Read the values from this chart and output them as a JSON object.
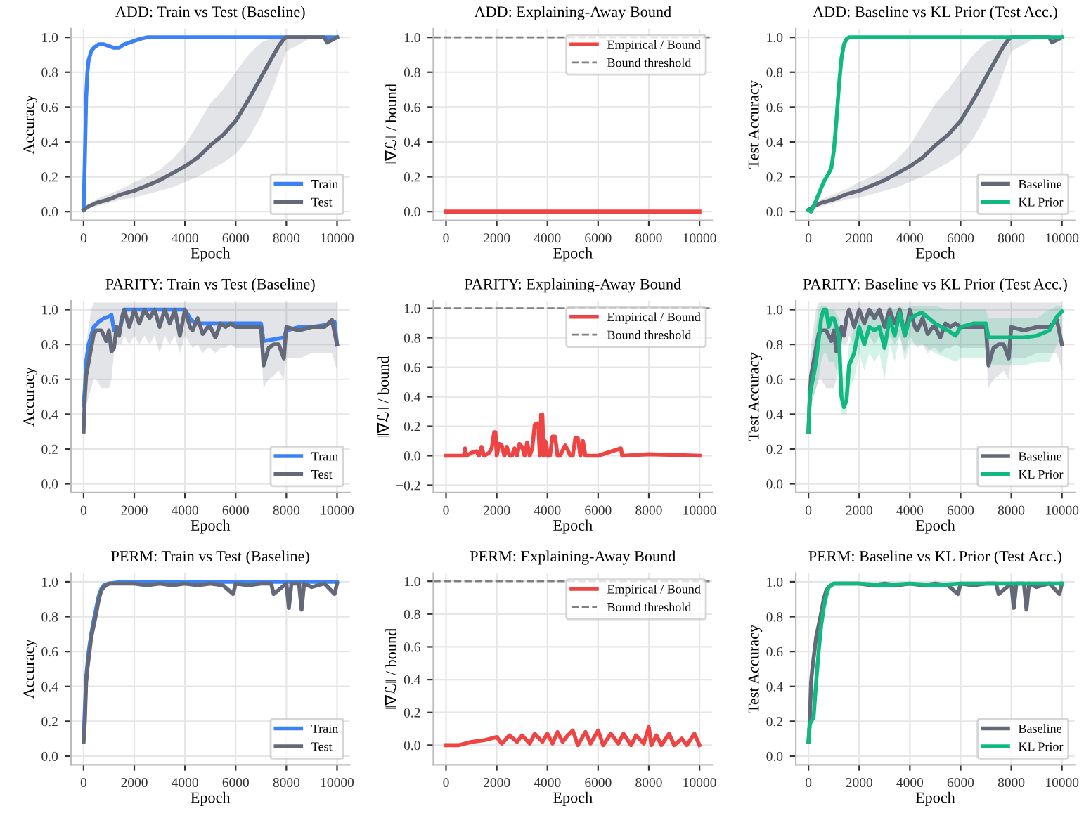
{
  "chart_data": [
    {
      "type": "line",
      "title": "ADD: Train vs Test (Baseline)",
      "xlabel": "Epoch",
      "ylabel": "Accuracy",
      "xlim": [
        -500,
        10500
      ],
      "xticks": [
        0,
        2000,
        4000,
        6000,
        8000,
        10000
      ],
      "ylim": [
        -0.05,
        1.05
      ],
      "yticks": [
        {
          "value": 0,
          "label": "0.0"
        },
        0.2,
        0.4,
        0.6,
        0.8,
        {
          "value": 1,
          "label": "1.0"
        }
      ],
      "grid": true,
      "legend": "bottom right",
      "series": [
        {
          "name": "Train",
          "color": "#3b82f6",
          "x": [
            0,
            50,
            100,
            150,
            200,
            300,
            400,
            500,
            600,
            700,
            800,
            1000,
            1200,
            1400,
            1600,
            1800,
            2000,
            2200,
            2500,
            3000,
            4000,
            5000,
            6000,
            7000,
            8000,
            9000,
            10000
          ],
          "values": [
            0.01,
            0.3,
            0.65,
            0.8,
            0.87,
            0.92,
            0.94,
            0.95,
            0.96,
            0.96,
            0.96,
            0.95,
            0.94,
            0.94,
            0.96,
            0.97,
            0.98,
            0.99,
            1,
            1,
            1,
            1,
            1,
            1,
            1,
            1,
            1
          ]
        },
        {
          "name": "Test",
          "color": "#64697a",
          "x": [
            0,
            200,
            500,
            1000,
            1500,
            2000,
            2500,
            3000,
            3500,
            4000,
            4500,
            5000,
            5500,
            6000,
            6500,
            7000,
            7500,
            7700,
            7900,
            8000,
            9000,
            9500,
            9600,
            10000
          ],
          "values": [
            0.01,
            0.03,
            0.05,
            0.07,
            0.1,
            0.12,
            0.15,
            0.18,
            0.22,
            0.26,
            0.31,
            0.38,
            0.44,
            0.52,
            0.64,
            0.77,
            0.9,
            0.95,
            0.99,
            1,
            1,
            1,
            0.97,
            1.0
          ],
          "lower": [
            0.01,
            0.02,
            0.03,
            0.05,
            0.07,
            0.08,
            0.1,
            0.12,
            0.14,
            0.17,
            0.2,
            0.24,
            0.28,
            0.33,
            0.42,
            0.55,
            0.72,
            0.8,
            0.88,
            0.92,
            1,
            1,
            0.97,
            1.0
          ],
          "upper": [
            0.01,
            0.04,
            0.07,
            0.1,
            0.13,
            0.17,
            0.2,
            0.24,
            0.3,
            0.38,
            0.5,
            0.62,
            0.7,
            0.8,
            0.9,
            0.97,
            1.0,
            1.0,
            1.0,
            1.0,
            1,
            1,
            1,
            1
          ]
        }
      ]
    },
    {
      "type": "line",
      "title": "ADD: Explaining-Away Bound",
      "xlabel": "Epoch",
      "ylabel": "‖∇ℒ‖ / bound",
      "xlim": [
        -500,
        10500
      ],
      "xticks": [
        0,
        2000,
        4000,
        6000,
        8000,
        10000
      ],
      "ylim": [
        -0.05,
        1.05
      ],
      "yticks": [
        {
          "value": 0,
          "label": "0.0"
        },
        0.2,
        0.4,
        0.6,
        0.8,
        {
          "value": 1,
          "label": "1.0"
        }
      ],
      "grid": true,
      "legend": "top right",
      "series": [
        {
          "name": "Empirical / Bound",
          "color": "#ef4444",
          "x": [
            0,
            2000,
            4000,
            6000,
            8000,
            10000
          ],
          "values": [
            0,
            0,
            0,
            0,
            0,
            0
          ]
        }
      ],
      "ref_lines": [
        {
          "axis": "y",
          "value": 1.0,
          "label": "Bound threshold",
          "color": "#808080",
          "line_style": "dashed"
        }
      ]
    },
    {
      "type": "line",
      "title": "ADD: Baseline vs KL Prior (Test Acc.)",
      "xlabel": "Epoch",
      "ylabel": "Test Accuracy",
      "xlim": [
        -500,
        10500
      ],
      "xticks": [
        0,
        2000,
        4000,
        6000,
        8000,
        10000
      ],
      "ylim": [
        -0.05,
        1.05
      ],
      "yticks": [
        {
          "value": 0,
          "label": "0.0"
        },
        0.2,
        0.4,
        0.6,
        0.8,
        {
          "value": 1,
          "label": "1.0"
        }
      ],
      "grid": true,
      "legend": "bottom right",
      "series": [
        {
          "name": "Baseline",
          "color": "#64697a",
          "x": [
            0,
            200,
            500,
            1000,
            1500,
            2000,
            2500,
            3000,
            3500,
            4000,
            4500,
            5000,
            5500,
            6000,
            6500,
            7000,
            7500,
            7700,
            7900,
            8000,
            9000,
            9500,
            9600,
            10000
          ],
          "values": [
            0.01,
            0.03,
            0.05,
            0.07,
            0.1,
            0.12,
            0.15,
            0.18,
            0.22,
            0.26,
            0.31,
            0.38,
            0.44,
            0.52,
            0.64,
            0.77,
            0.9,
            0.95,
            0.99,
            1,
            1,
            1,
            0.97,
            1.0
          ],
          "lower": [
            0.01,
            0.02,
            0.03,
            0.05,
            0.07,
            0.08,
            0.1,
            0.12,
            0.14,
            0.17,
            0.2,
            0.24,
            0.28,
            0.33,
            0.42,
            0.55,
            0.72,
            0.8,
            0.88,
            0.92,
            1,
            1,
            0.97,
            1.0
          ],
          "upper": [
            0.01,
            0.04,
            0.07,
            0.1,
            0.13,
            0.17,
            0.2,
            0.24,
            0.3,
            0.38,
            0.5,
            0.62,
            0.7,
            0.8,
            0.9,
            0.97,
            1.0,
            1.0,
            1.0,
            1.0,
            1,
            1,
            1,
            1
          ]
        },
        {
          "name": "KL Prior",
          "color": "#10b981",
          "x": [
            0,
            100,
            200,
            400,
            600,
            800,
            900,
            1000,
            1100,
            1200,
            1300,
            1400,
            1500,
            1600,
            1700,
            1800,
            2000,
            4000,
            6000,
            8000,
            10000
          ],
          "values": [
            0.01,
            0.0,
            0.03,
            0.1,
            0.17,
            0.22,
            0.25,
            0.35,
            0.52,
            0.72,
            0.88,
            0.96,
            0.99,
            1,
            1,
            1,
            1,
            1,
            1,
            1,
            1
          ]
        }
      ]
    },
    {
      "type": "line",
      "title": "PARITY: Train vs Test (Baseline)",
      "xlabel": "Epoch",
      "ylabel": "Accuracy",
      "xlim": [
        -500,
        10500
      ],
      "xticks": [
        0,
        2000,
        4000,
        6000,
        8000,
        10000
      ],
      "ylim": [
        -0.05,
        1.05
      ],
      "yticks": [
        {
          "value": 0,
          "label": "0.0"
        },
        0.2,
        0.4,
        0.6,
        0.8,
        {
          "value": 1,
          "label": "1.0"
        }
      ],
      "grid": true,
      "legend": "bottom right",
      "series": [
        {
          "name": "Train",
          "color": "#3b82f6",
          "x": [
            0,
            50,
            100,
            200,
            300,
            400,
            600,
            800,
            1000,
            1100,
            1200,
            1400,
            1600,
            1800,
            2000,
            3000,
            4000,
            4200,
            4400,
            5000,
            6000,
            7000,
            7100,
            7500,
            7900,
            8000,
            8500,
            9000,
            9500,
            9900,
            10000
          ],
          "values": [
            0.45,
            0.55,
            0.7,
            0.8,
            0.85,
            0.9,
            0.93,
            0.95,
            0.96,
            0.97,
            0.88,
            0.86,
            1.0,
            1.0,
            1.0,
            1.0,
            1.0,
            0.95,
            0.92,
            0.92,
            0.92,
            0.92,
            0.82,
            0.83,
            0.84,
            0.88,
            0.9,
            0.9,
            0.91,
            0.93,
            0.8
          ]
        },
        {
          "name": "Test",
          "color": "#64697a",
          "x": [
            0,
            50,
            100,
            200,
            300,
            400,
            500,
            700,
            900,
            1000,
            1100,
            1200,
            1300,
            1400,
            1500,
            1600,
            1800,
            2000,
            2200,
            2400,
            2600,
            2800,
            3000,
            3200,
            3400,
            3600,
            3800,
            4000,
            4200,
            4300,
            4500,
            4700,
            4900,
            5000,
            5200,
            5400,
            5600,
            5800,
            6000,
            6500,
            7000,
            7100,
            7300,
            7500,
            7700,
            7900,
            8000,
            8500,
            9000,
            9500,
            9800,
            10000
          ],
          "values": [
            0.3,
            0.5,
            0.62,
            0.7,
            0.78,
            0.86,
            0.88,
            0.88,
            0.82,
            0.88,
            0.76,
            0.78,
            0.9,
            0.85,
            0.95,
            1.0,
            0.9,
            1.0,
            0.92,
            1.0,
            0.95,
            1.0,
            0.9,
            1.0,
            0.92,
            1.0,
            0.85,
            1.0,
            0.9,
            0.88,
            0.95,
            0.86,
            0.9,
            0.9,
            0.84,
            0.92,
            0.9,
            0.92,
            0.9,
            0.9,
            0.9,
            0.68,
            0.78,
            0.8,
            0.8,
            0.72,
            0.9,
            0.88,
            0.9,
            0.9,
            0.94,
            0.8
          ],
          "lower": [
            0.3,
            0.4,
            0.45,
            0.5,
            0.55,
            0.6,
            0.6,
            0.55,
            0.55,
            0.55,
            0.6,
            0.75,
            0.8,
            0.8,
            0.8,
            0.85,
            0.8,
            0.85,
            0.8,
            0.85,
            0.8,
            0.85,
            0.75,
            0.85,
            0.8,
            0.85,
            0.75,
            0.85,
            0.8,
            0.78,
            0.8,
            0.75,
            0.78,
            0.78,
            0.75,
            0.78,
            0.78,
            0.8,
            0.78,
            0.78,
            0.78,
            0.55,
            0.6,
            0.62,
            0.65,
            0.6,
            0.72,
            0.72,
            0.75,
            0.75,
            0.75,
            0.65
          ],
          "upper": [
            0.5,
            0.7,
            0.8,
            0.9,
            1.0,
            1.04,
            1.04,
            1.04,
            1.04,
            1.04,
            1.04,
            1.04,
            1.04,
            1.04,
            1.04,
            1.04,
            1.04,
            1.04,
            1.04,
            1.04,
            1.04,
            1.04,
            1.04,
            1.04,
            1.04,
            1.04,
            1.04,
            1.04,
            1.04,
            1.04,
            1.04,
            1.04,
            1.04,
            1.04,
            1.04,
            1.04,
            1.04,
            1.04,
            1.04,
            1.04,
            1.04,
            1.04,
            1.04,
            1.04,
            1.04,
            1.04,
            1.04,
            1.04,
            1.04,
            1.04,
            1.04,
            1.04
          ]
        }
      ]
    },
    {
      "type": "line",
      "title": "PARITY: Explaining-Away Bound",
      "xlabel": "Epoch",
      "ylabel": "‖∇ℒ‖ / bound",
      "xlim": [
        -500,
        10500
      ],
      "xticks": [
        0,
        2000,
        4000,
        6000,
        8000,
        10000
      ],
      "ylim": [
        -0.25,
        1.05
      ],
      "yticks": [
        {
          "value": -0.2,
          "label": "−0.2"
        },
        {
          "value": 0,
          "label": "0.0"
        },
        0.2,
        0.4,
        0.6,
        0.8,
        {
          "value": 1,
          "label": "1.0"
        }
      ],
      "grid": true,
      "legend": "top right",
      "series": [
        {
          "name": "Empirical / Bound",
          "color": "#ef4444",
          "x": [
            0,
            500,
            700,
            750,
            800,
            1000,
            1200,
            1300,
            1400,
            1500,
            1700,
            1800,
            1900,
            1950,
            2000,
            2100,
            2200,
            2300,
            2400,
            2500,
            2600,
            2700,
            2800,
            2900,
            3000,
            3100,
            3200,
            3300,
            3400,
            3500,
            3600,
            3650,
            3700,
            3750,
            3800,
            3850,
            3900,
            3950,
            4000,
            4100,
            4200,
            4300,
            4400,
            4500,
            4700,
            4800,
            4900,
            5000,
            5100,
            5200,
            5300,
            5400,
            5500,
            6000,
            6900,
            6950,
            7000,
            8000,
            10000
          ],
          "values": [
            0,
            0,
            0,
            0.05,
            0,
            0.02,
            0.03,
            0,
            0.06,
            0,
            0.02,
            0.05,
            0.16,
            0.16,
            0,
            0.08,
            0.07,
            0,
            0.06,
            0,
            0,
            0.05,
            0,
            0.08,
            0.06,
            0,
            0.09,
            0,
            0.05,
            0.21,
            0.22,
            0.18,
            0,
            0.28,
            0.28,
            0,
            0.1,
            0.09,
            0,
            0,
            0.13,
            0.13,
            0,
            0,
            0.07,
            0.04,
            0,
            0,
            0.12,
            0.12,
            0,
            0.1,
            0,
            0,
            0.05,
            0,
            0,
            0.01,
            0
          ]
        }
      ],
      "ref_lines": [
        {
          "axis": "y",
          "value": 1.0,
          "label": "Bound threshold",
          "color": "#808080",
          "line_style": "dashed"
        }
      ]
    },
    {
      "type": "line",
      "title": "PARITY: Baseline vs KL Prior (Test Acc.)",
      "xlabel": "Epoch",
      "ylabel": "Test Accuracy",
      "xlim": [
        -500,
        10500
      ],
      "xticks": [
        0,
        2000,
        4000,
        6000,
        8000,
        10000
      ],
      "ylim": [
        -0.05,
        1.05
      ],
      "yticks": [
        {
          "value": 0,
          "label": "0.0"
        },
        0.2,
        0.4,
        0.6,
        0.8,
        {
          "value": 1,
          "label": "1.0"
        }
      ],
      "grid": true,
      "legend": "bottom right",
      "series": [
        {
          "name": "Baseline",
          "color": "#64697a",
          "x": [
            0,
            50,
            100,
            200,
            300,
            400,
            500,
            700,
            900,
            1000,
            1100,
            1200,
            1300,
            1400,
            1500,
            1600,
            1800,
            2000,
            2200,
            2400,
            2600,
            2800,
            3000,
            3200,
            3400,
            3600,
            3800,
            4000,
            4200,
            4300,
            4500,
            4700,
            4900,
            5000,
            5200,
            5400,
            5600,
            5800,
            6000,
            6500,
            7000,
            7100,
            7300,
            7500,
            7700,
            7900,
            8000,
            8500,
            9000,
            9500,
            9800,
            10000
          ],
          "values": [
            0.3,
            0.5,
            0.62,
            0.7,
            0.78,
            0.86,
            0.88,
            0.88,
            0.82,
            0.88,
            0.76,
            0.78,
            0.9,
            0.85,
            0.95,
            1.0,
            0.9,
            1.0,
            0.92,
            1.0,
            0.95,
            1.0,
            0.9,
            1.0,
            0.92,
            1.0,
            0.85,
            1.0,
            0.9,
            0.88,
            0.95,
            0.86,
            0.9,
            0.9,
            0.84,
            0.92,
            0.9,
            0.92,
            0.9,
            0.9,
            0.9,
            0.68,
            0.78,
            0.8,
            0.8,
            0.72,
            0.9,
            0.88,
            0.9,
            0.9,
            0.94,
            0.8
          ],
          "lower": [
            0.3,
            0.4,
            0.45,
            0.5,
            0.55,
            0.6,
            0.6,
            0.55,
            0.55,
            0.55,
            0.6,
            0.75,
            0.8,
            0.8,
            0.8,
            0.85,
            0.8,
            0.85,
            0.8,
            0.85,
            0.8,
            0.85,
            0.75,
            0.85,
            0.8,
            0.85,
            0.75,
            0.85,
            0.8,
            0.78,
            0.8,
            0.75,
            0.78,
            0.78,
            0.75,
            0.78,
            0.78,
            0.8,
            0.78,
            0.78,
            0.78,
            0.55,
            0.6,
            0.62,
            0.65,
            0.6,
            0.72,
            0.72,
            0.75,
            0.75,
            0.75,
            0.65
          ],
          "upper": [
            0.5,
            0.7,
            0.8,
            0.9,
            1.0,
            1.04,
            1.04,
            1.04,
            1.04,
            1.04,
            1.04,
            1.04,
            1.04,
            1.04,
            1.04,
            1.04,
            1.04,
            1.04,
            1.04,
            1.04,
            1.04,
            1.04,
            1.04,
            1.04,
            1.04,
            1.04,
            1.04,
            1.04,
            1.04,
            1.04,
            1.04,
            1.04,
            1.04,
            1.04,
            1.04,
            1.04,
            1.04,
            1.04,
            1.04,
            1.04,
            1.04,
            1.04,
            1.04,
            1.04,
            1.04,
            1.04,
            1.04,
            1.04,
            1.04,
            1.04,
            1.04,
            1.04
          ]
        },
        {
          "name": "KL Prior",
          "color": "#10b981",
          "x": [
            0,
            50,
            100,
            200,
            300,
            400,
            500,
            600,
            700,
            800,
            900,
            1000,
            1200,
            1300,
            1400,
            1500,
            1600,
            1800,
            2000,
            2200,
            2400,
            2600,
            2800,
            3000,
            3200,
            3400,
            3600,
            3800,
            4000,
            4400,
            4500,
            5000,
            5500,
            5800,
            6000,
            6500,
            7000,
            7100,
            7500,
            8000,
            8500,
            9000,
            9500,
            9800,
            10000
          ],
          "values": [
            0.3,
            0.5,
            0.55,
            0.62,
            0.7,
            0.82,
            0.95,
            1.0,
            1.0,
            0.9,
            0.95,
            0.95,
            0.85,
            0.5,
            0.44,
            0.48,
            0.68,
            0.75,
            0.9,
            0.8,
            0.9,
            0.88,
            0.9,
            0.78,
            0.95,
            0.85,
            0.98,
            0.85,
            0.95,
            0.98,
            0.98,
            0.92,
            0.88,
            0.85,
            0.9,
            0.92,
            0.92,
            0.84,
            0.84,
            0.84,
            0.84,
            0.85,
            0.88,
            0.96,
            0.99
          ],
          "lower": [
            0.3,
            0.4,
            0.45,
            0.5,
            0.55,
            0.6,
            0.7,
            0.75,
            0.75,
            0.7,
            0.7,
            0.7,
            0.6,
            0.4,
            0.4,
            0.4,
            0.55,
            0.6,
            0.75,
            0.65,
            0.75,
            0.7,
            0.75,
            0.6,
            0.8,
            0.7,
            0.85,
            0.7,
            0.8,
            0.8,
            0.8,
            0.75,
            0.72,
            0.7,
            0.72,
            0.72,
            0.72,
            0.68,
            0.68,
            0.68,
            0.68,
            0.7,
            0.7,
            0.8,
            0.85
          ],
          "upper": [
            0.45,
            0.6,
            0.7,
            0.8,
            0.9,
            1.0,
            1.02,
            1.02,
            1.02,
            1.0,
            1.0,
            1.0,
            0.95,
            0.65,
            0.6,
            0.62,
            0.8,
            0.9,
            1.0,
            0.95,
            1.0,
            1.0,
            1.0,
            0.95,
            1.02,
            1.0,
            1.02,
            1.0,
            1.02,
            1.02,
            1.02,
            1.02,
            1.0,
            1.0,
            1.0,
            1.0,
            1.0,
            0.95,
            0.95,
            0.95,
            0.95,
            0.95,
            1.0,
            1.02,
            1.02
          ]
        }
      ]
    },
    {
      "type": "line",
      "title": "PERM: Train vs Test (Baseline)",
      "xlabel": "Epoch",
      "ylabel": "Accuracy",
      "xlim": [
        -500,
        10500
      ],
      "xticks": [
        0,
        2000,
        4000,
        6000,
        8000,
        10000
      ],
      "ylim": [
        -0.05,
        1.05
      ],
      "yticks": [
        {
          "value": 0,
          "label": "0.0"
        },
        0.2,
        0.4,
        0.6,
        0.8,
        {
          "value": 1,
          "label": "1.0"
        }
      ],
      "grid": true,
      "legend": "bottom right",
      "series": [
        {
          "name": "Train",
          "color": "#3b82f6",
          "x": [
            0,
            100,
            200,
            300,
            400,
            500,
            600,
            700,
            800,
            1000,
            1500,
            10000
          ],
          "values": [
            0.1,
            0.45,
            0.6,
            0.7,
            0.78,
            0.85,
            0.92,
            0.96,
            0.98,
            0.99,
            1.0,
            1.0
          ]
        },
        {
          "name": "Test",
          "color": "#64697a",
          "x": [
            0,
            50,
            100,
            150,
            200,
            300,
            400,
            500,
            600,
            700,
            800,
            900,
            1000,
            1200,
            1500,
            2000,
            2500,
            3000,
            3500,
            4000,
            4500,
            5000,
            5500,
            5900,
            6000,
            6500,
            7000,
            7400,
            7500,
            8000,
            8100,
            8200,
            8500,
            8600,
            8700,
            9000,
            9500,
            9900,
            10000
          ],
          "values": [
            0.08,
            0.2,
            0.42,
            0.5,
            0.56,
            0.68,
            0.75,
            0.82,
            0.9,
            0.95,
            0.97,
            0.98,
            0.99,
            0.99,
            0.99,
            0.99,
            0.98,
            0.99,
            0.98,
            0.99,
            0.98,
            0.99,
            0.98,
            0.93,
            0.99,
            0.98,
            0.99,
            0.99,
            0.93,
            0.99,
            0.85,
            0.99,
            0.99,
            0.84,
            0.99,
            0.97,
            0.99,
            0.93,
            0.99
          ]
        }
      ]
    },
    {
      "type": "line",
      "title": "PERM: Explaining-Away Bound",
      "xlabel": "Epoch",
      "ylabel": "‖∇ℒ‖ / bound",
      "xlim": [
        -500,
        10500
      ],
      "xticks": [
        0,
        2000,
        4000,
        6000,
        8000,
        10000
      ],
      "ylim": [
        -0.12,
        1.05
      ],
      "yticks": [
        {
          "value": 0,
          "label": "0.0"
        },
        0.2,
        0.4,
        0.6,
        0.8,
        {
          "value": 1,
          "label": "1.0"
        }
      ],
      "grid": true,
      "legend": "top right",
      "series": [
        {
          "name": "Empirical / Bound",
          "color": "#ef4444",
          "x": [
            0,
            500,
            1000,
            1500,
            2000,
            2200,
            2500,
            2800,
            3000,
            3300,
            3500,
            3800,
            4000,
            4200,
            4400,
            4600,
            4800,
            5000,
            5200,
            5500,
            5700,
            6000,
            6200,
            6500,
            6800,
            7000,
            7300,
            7500,
            7800,
            8000,
            8100,
            8300,
            8500,
            8800,
            9000,
            9300,
            9500,
            9800,
            10000
          ],
          "values": [
            0,
            0,
            0.02,
            0.03,
            0.05,
            0.01,
            0.06,
            0.02,
            0.06,
            0.01,
            0.07,
            0.02,
            0.07,
            0.01,
            0.08,
            0.02,
            0.06,
            0.09,
            0.0,
            0.08,
            0.01,
            0.09,
            0.0,
            0.07,
            0.01,
            0.07,
            0.0,
            0.06,
            0.01,
            0.11,
            0.0,
            0.06,
            0.0,
            0.07,
            0.0,
            0.04,
            0.0,
            0.07,
            0.0
          ]
        }
      ],
      "ref_lines": [
        {
          "axis": "y",
          "value": 1.0,
          "label": "Bound threshold",
          "color": "#808080",
          "line_style": "dashed"
        }
      ]
    },
    {
      "type": "line",
      "title": "PERM: Baseline vs KL Prior (Test Acc.)",
      "xlabel": "Epoch",
      "ylabel": "Test Accuracy",
      "xlim": [
        -500,
        10500
      ],
      "xticks": [
        0,
        2000,
        4000,
        6000,
        8000,
        10000
      ],
      "ylim": [
        -0.05,
        1.05
      ],
      "yticks": [
        {
          "value": 0,
          "label": "0.0"
        },
        0.2,
        0.4,
        0.6,
        0.8,
        {
          "value": 1,
          "label": "1.0"
        }
      ],
      "grid": true,
      "legend": "bottom right",
      "series": [
        {
          "name": "Baseline",
          "color": "#64697a",
          "x": [
            0,
            50,
            100,
            150,
            200,
            300,
            400,
            500,
            600,
            700,
            800,
            900,
            1000,
            1200,
            1500,
            2000,
            2500,
            3000,
            3500,
            4000,
            4500,
            5000,
            5500,
            5900,
            6000,
            6500,
            7000,
            7400,
            7500,
            8000,
            8100,
            8200,
            8500,
            8600,
            8700,
            9000,
            9500,
            9900,
            10000
          ],
          "values": [
            0.08,
            0.2,
            0.42,
            0.5,
            0.56,
            0.68,
            0.75,
            0.82,
            0.9,
            0.95,
            0.97,
            0.98,
            0.99,
            0.99,
            0.99,
            0.99,
            0.98,
            0.99,
            0.98,
            0.99,
            0.98,
            0.99,
            0.98,
            0.93,
            0.99,
            0.98,
            0.99,
            0.99,
            0.93,
            0.99,
            0.85,
            0.99,
            0.99,
            0.84,
            0.99,
            0.97,
            0.99,
            0.93,
            0.99
          ]
        },
        {
          "name": "KL Prior",
          "color": "#10b981",
          "x": [
            0,
            50,
            100,
            200,
            300,
            400,
            500,
            600,
            700,
            800,
            900,
            1000,
            1500,
            2000,
            3000,
            4000,
            5000,
            6000,
            7000,
            8000,
            9000,
            10000
          ],
          "values": [
            0.08,
            0.18,
            0.2,
            0.22,
            0.42,
            0.6,
            0.75,
            0.85,
            0.92,
            0.97,
            0.98,
            0.99,
            0.99,
            0.99,
            0.98,
            0.99,
            0.98,
            0.99,
            0.99,
            0.99,
            0.99,
            0.99
          ]
        }
      ]
    }
  ]
}
